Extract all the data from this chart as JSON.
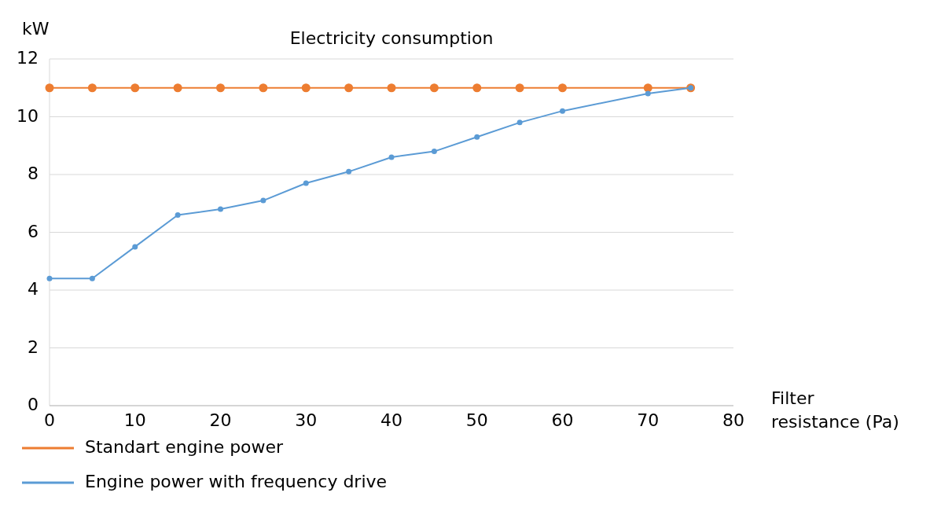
{
  "chart_data": {
    "type": "line",
    "title": "Electricity  consumption",
    "xlabel": "Filter resistance (Pa)",
    "ylabel": "kW",
    "xlim": [
      0,
      80
    ],
    "xticks": [
      0,
      10,
      20,
      30,
      40,
      50,
      60,
      70,
      80
    ],
    "ylim": [
      0,
      12
    ],
    "yticks": [
      0,
      2,
      4,
      6,
      8,
      10,
      12
    ],
    "grid": "y",
    "legend": "bottom left",
    "marker": "circle",
    "line_style": "solid",
    "series": [
      {
        "name": "Standart engine power",
        "color": "#ed7d31",
        "x": [
          0,
          5,
          10,
          15,
          20,
          25,
          30,
          35,
          40,
          45,
          50,
          55,
          60,
          70,
          75
        ],
        "values": [
          11,
          11,
          11,
          11,
          11,
          11,
          11,
          11,
          11,
          11,
          11,
          11,
          11,
          11,
          11
        ]
      },
      {
        "name": "Engine power with frequency drive",
        "color": "#5b9bd5",
        "x": [
          0,
          5,
          10,
          15,
          20,
          25,
          30,
          35,
          40,
          45,
          50,
          55,
          60,
          70,
          75
        ],
        "values": [
          4.4,
          4.4,
          5.5,
          6.6,
          6.8,
          7.1,
          7.7,
          8.1,
          8.6,
          8.8,
          9.3,
          9.8,
          10.2,
          10.8,
          11
        ]
      }
    ]
  }
}
